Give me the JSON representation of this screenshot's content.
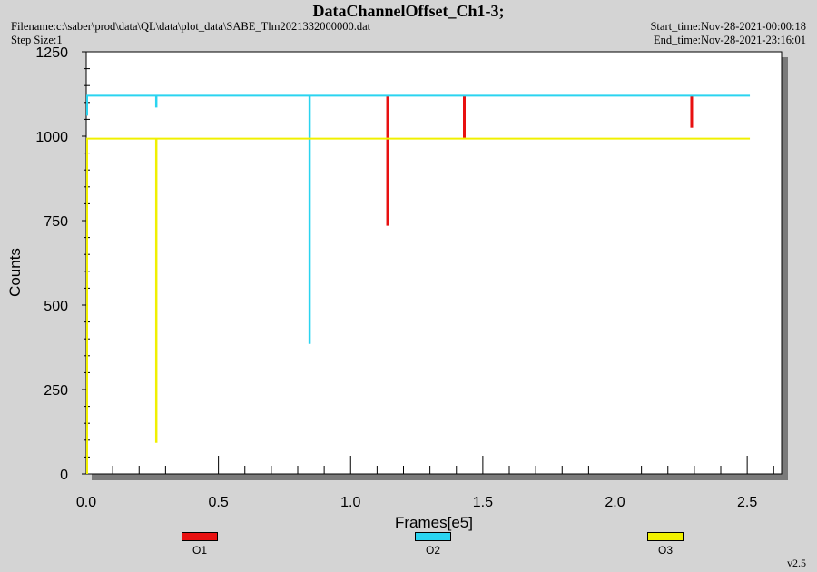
{
  "header": {
    "title": "DataChannelOffset_Ch1-3;",
    "filename": "Filename:c:\\saber\\prod\\data\\QL\\data\\plot_data\\SABE_Tlm2021332000000.dat",
    "step_size": "Step Size:1",
    "start_time": "Start_time:Nov-28-2021-00:00:18",
    "end_time": "End_time:Nov-28-2021-23:16:01"
  },
  "version": "v2.5",
  "chart_data": {
    "type": "line",
    "title": "DataChannelOffset_Ch1-3;",
    "xlabel": "Frames[e5]",
    "ylabel": "Counts",
    "xlim": [
      0.0,
      2.63
    ],
    "ylim": [
      0,
      1250
    ],
    "xticks": [
      0.0,
      0.5,
      1.0,
      1.5,
      2.0,
      2.5
    ],
    "xtick_labels": [
      "0.0",
      "0.5",
      "1.0",
      "1.5",
      "2.0",
      "2.5"
    ],
    "yticks": [
      0,
      250,
      500,
      750,
      1000,
      1250
    ],
    "ytick_labels": [
      "0",
      "250",
      "500",
      "750",
      "1000",
      "1250"
    ],
    "grid": false,
    "legend_position": "bottom",
    "series": [
      {
        "name": "O1",
        "color": "#e81010",
        "baseline": 1120,
        "x_range": [
          1.14,
          2.29
        ],
        "spikes": [
          {
            "x": 1.14,
            "y": 735
          },
          {
            "x": 1.43,
            "y": 995
          },
          {
            "x": 2.29,
            "y": 1025
          }
        ]
      },
      {
        "name": "O2",
        "color": "#2ad4f0",
        "baseline": 1120,
        "x_range": [
          0.0,
          2.51
        ],
        "spikes": [
          {
            "x": 0.265,
            "y": 1085
          },
          {
            "x": 0.845,
            "y": 385
          }
        ]
      },
      {
        "name": "O3",
        "color": "#f0f000",
        "baseline": 993,
        "x_range": [
          0.0,
          2.51
        ],
        "spikes": [
          {
            "x": 0.265,
            "y": 92
          }
        ]
      }
    ]
  }
}
